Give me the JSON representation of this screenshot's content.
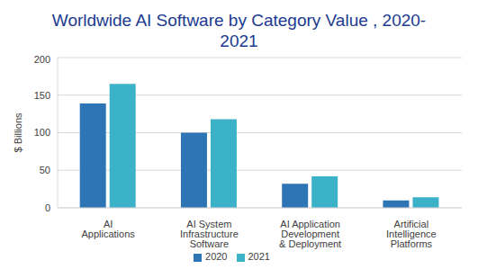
{
  "chart_data": {
    "type": "bar",
    "title": "Worldwide AI Software by Category Value , 2020-2021",
    "y_label": "$ Billions",
    "categories": [
      "AI Applications",
      "AI System Infrastructure Software",
      "AI Application Development & Deployment",
      "Artificial Intelligence Platforms"
    ],
    "series": [
      {
        "name": "2020",
        "color": "#2e75b6",
        "values": [
          139,
          100,
          32,
          10
        ]
      },
      {
        "name": "2021",
        "color": "#3cb2c9",
        "values": [
          165,
          118,
          42,
          14
        ]
      }
    ],
    "ylim": [
      0,
      200
    ],
    "yticks": [
      0,
      50,
      100,
      150,
      200
    ],
    "grid": true,
    "legend": "bottom"
  }
}
